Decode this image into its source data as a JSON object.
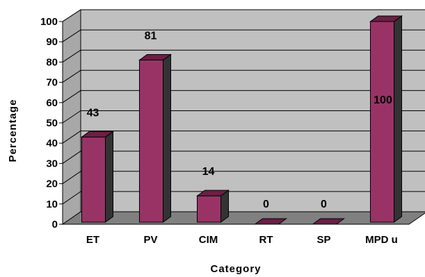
{
  "chart_data": {
    "type": "bar",
    "style": "3d-column",
    "xlabel": "Category",
    "ylabel": "Percentage",
    "categories": [
      "ET",
      "PV",
      "CIM",
      "RT",
      "SP",
      "MPD u"
    ],
    "values": [
      43,
      81,
      14,
      0,
      0,
      100
    ],
    "data_labels": [
      "43",
      "81",
      "14",
      "0",
      "0",
      "100"
    ],
    "ylim": [
      0,
      100
    ],
    "yticks": [
      "0",
      "10",
      "20",
      "30",
      "40",
      "50",
      "60",
      "70",
      "80",
      "90",
      "100"
    ],
    "grid": true,
    "colors": {
      "bar_front": "#993366",
      "bar_side": "#333333",
      "bar_top": "#6b1f44",
      "wall": "#c0c0c0",
      "floor": "#808080",
      "gridline": "#000000"
    }
  }
}
